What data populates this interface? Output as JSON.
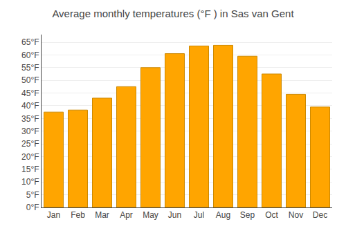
{
  "chart_data": {
    "type": "bar",
    "title": "Average monthly temperatures (°F ) in Sas van Gent",
    "categories": [
      "Jan",
      "Feb",
      "Mar",
      "Apr",
      "May",
      "Jun",
      "Jul",
      "Aug",
      "Sep",
      "Oct",
      "Nov",
      "Dec"
    ],
    "values": [
      37.5,
      38.3,
      43.0,
      47.5,
      55.0,
      60.5,
      63.5,
      63.8,
      59.5,
      52.5,
      44.5,
      39.5
    ],
    "color": "#FFA500",
    "ylim": [
      0,
      68
    ],
    "yticks": [
      {
        "value": 0,
        "label": "0°F"
      },
      {
        "value": 5,
        "label": "5°F"
      },
      {
        "value": 10,
        "label": "10°F"
      },
      {
        "value": 15,
        "label": "15°F"
      },
      {
        "value": 20,
        "label": "20°F"
      },
      {
        "value": 25,
        "label": "25°F"
      },
      {
        "value": 30,
        "label": "30°F"
      },
      {
        "value": 35,
        "label": "35°F"
      },
      {
        "value": 40,
        "label": "40°F"
      },
      {
        "value": 45,
        "label": "45°F"
      },
      {
        "value": 50,
        "label": "50°F"
      },
      {
        "value": 55,
        "label": "55°F"
      },
      {
        "value": 60,
        "label": "60°F"
      },
      {
        "value": 65,
        "label": "65°F"
      }
    ],
    "grid": true
  }
}
